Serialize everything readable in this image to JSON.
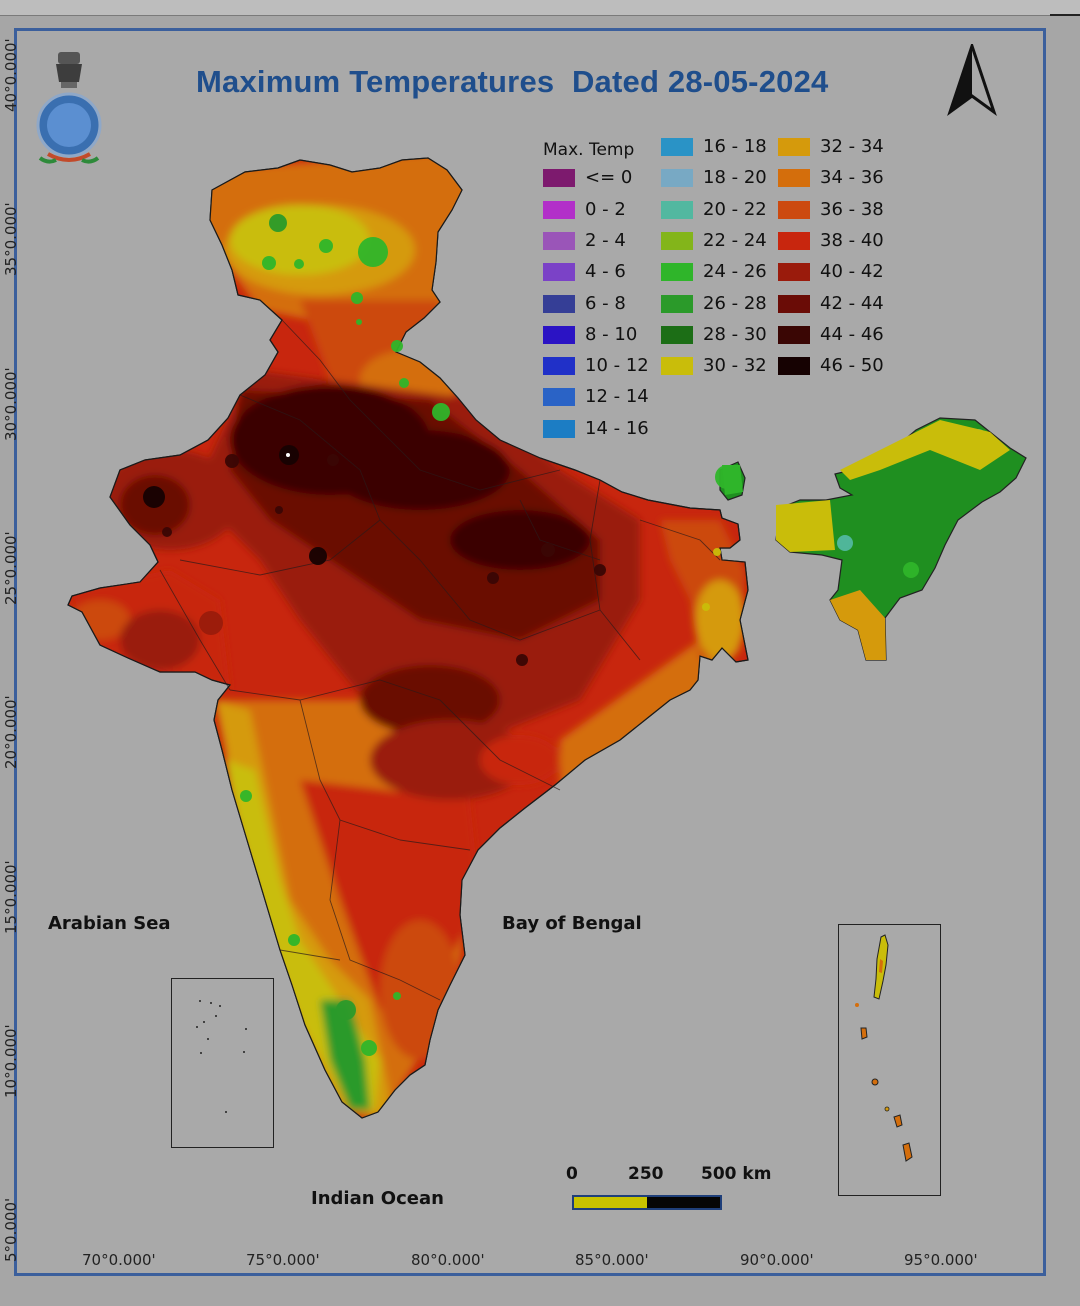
{
  "title": "Maximum Temperatures  Dated 28-05-2024",
  "lat_labels": [
    "40°0.000'",
    "35°0.000'",
    "30°0.000'",
    "25°0.000'",
    "20°0.000'",
    "15°0.000'",
    "10°0.000'",
    "5°0.000'"
  ],
  "lon_labels": [
    "70°0.000'",
    "75°0.000'",
    "80°0.000'",
    "85°0.000'",
    "90°0.000'",
    "95°0.000'"
  ],
  "seas": {
    "arabian": "Arabian Sea",
    "bengal": "Bay of Bengal",
    "indian": "Indian Ocean"
  },
  "legend": {
    "title": "Max. Temp",
    "items": [
      {
        "label": "<= 0",
        "color": "#7d1a6e"
      },
      {
        "label": "0 - 2",
        "color": "#b22fc9"
      },
      {
        "label": "2 - 4",
        "color": "#9a55b8"
      },
      {
        "label": "4 - 6",
        "color": "#7b42c7"
      },
      {
        "label": "6 - 8",
        "color": "#353e96"
      },
      {
        "label": "8 - 10",
        "color": "#2b13c4"
      },
      {
        "label": "10 - 12",
        "color": "#2030c8"
      },
      {
        "label": "12 - 14",
        "color": "#2a63c6"
      },
      {
        "label": "14 - 16",
        "color": "#1c7dc4"
      },
      {
        "label": "16 - 18",
        "color": "#2a93c6"
      },
      {
        "label": "18 - 20",
        "color": "#78a9c4"
      },
      {
        "label": "20 - 22",
        "color": "#52b8a0"
      },
      {
        "label": "22 - 24",
        "color": "#83b51a"
      },
      {
        "label": "24 - 26",
        "color": "#2fb52a"
      },
      {
        "label": "26 - 28",
        "color": "#2b9a2a"
      },
      {
        "label": "28 - 30",
        "color": "#1c6e16"
      },
      {
        "label": "30 - 32",
        "color": "#c9bd0a"
      },
      {
        "label": "32 - 34",
        "color": "#d59a0c"
      },
      {
        "label": "34 - 36",
        "color": "#d46e0c"
      },
      {
        "label": "36 - 38",
        "color": "#cc4a10"
      },
      {
        "label": "38 - 40",
        "color": "#c8260e"
      },
      {
        "label": "40 - 42",
        "color": "#9a1b0c"
      },
      {
        "label": "42 - 44",
        "color": "#6a0c06"
      },
      {
        "label": "44 - 46",
        "color": "#3a0604"
      },
      {
        "label": "46 - 50",
        "color": "#160202"
      }
    ]
  },
  "scale": {
    "t0": "0",
    "t1": "250",
    "t2": "500 km"
  },
  "colors": {
    "frame": "#3b5f9c",
    "title": "#1f4e8c",
    "background": "#a9a9a9"
  }
}
